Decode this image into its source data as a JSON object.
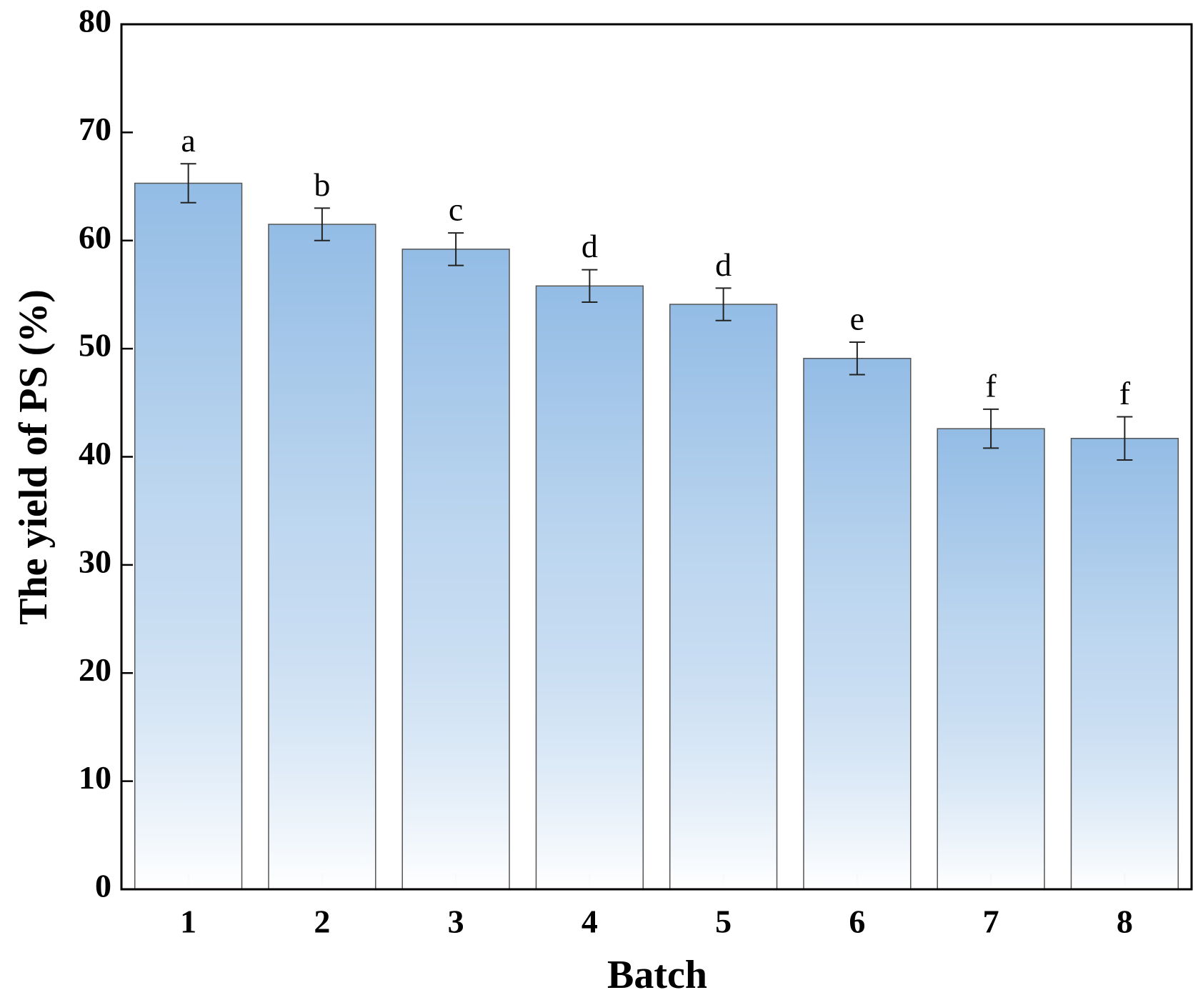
{
  "chart_data": {
    "type": "bar",
    "x_label": "Batch",
    "y_label": "The yield of PS (%)",
    "categories": [
      "1",
      "2",
      "3",
      "4",
      "5",
      "6",
      "7",
      "8"
    ],
    "series": [
      {
        "values": [
          65.3,
          61.5,
          59.2,
          55.8,
          54.1,
          49.1,
          42.6,
          41.7
        ],
        "errors": [
          1.8,
          1.5,
          1.5,
          1.5,
          1.5,
          1.5,
          1.8,
          2.0
        ],
        "annotations": [
          "a",
          "b",
          "c",
          "d",
          "d",
          "e",
          "f",
          "f"
        ],
        "color": "#93bce5"
      }
    ],
    "ylim": [
      0,
      80
    ],
    "yticks": [
      0,
      10,
      20,
      30,
      40,
      50,
      60,
      70,
      80
    ],
    "grid": false
  }
}
